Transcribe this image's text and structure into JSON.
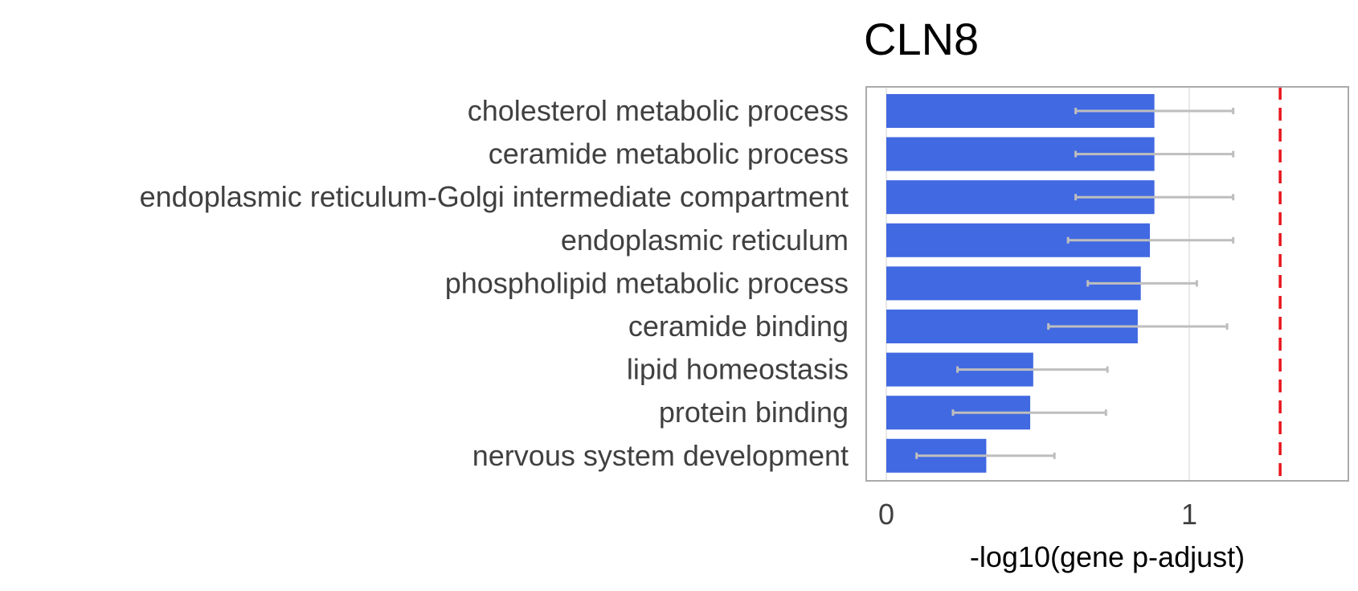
{
  "chart_data": {
    "type": "bar",
    "orientation": "horizontal",
    "title": "CLN8",
    "xlabel": "-log10(gene p-adjust)",
    "ylabel": "",
    "xlim": [
      -0.07,
      1.52
    ],
    "xticks": [
      0,
      1
    ],
    "xtick_labels": [
      "0",
      "1"
    ],
    "categories": [
      "cholesterol metabolic process",
      "ceramide metabolic process",
      "endoplasmic reticulum-Golgi intermediate compartment",
      "endoplasmic reticulum",
      "phospholipid metabolic process",
      "ceramide binding",
      "lipid homeostasis",
      "protein binding",
      "nervous system development"
    ],
    "values": [
      0.885,
      0.885,
      0.885,
      0.87,
      0.84,
      0.83,
      0.485,
      0.475,
      0.33
    ],
    "error_low": [
      0.625,
      0.625,
      0.625,
      0.6,
      0.665,
      0.535,
      0.235,
      0.22,
      0.1
    ],
    "error_high": [
      1.145,
      1.145,
      1.145,
      1.145,
      1.025,
      1.125,
      0.73,
      0.725,
      0.555
    ],
    "threshold": 1.3,
    "grid": "vertical at ticks",
    "legend": "none",
    "colors": {
      "bar": "#4169E1",
      "errorbar": "#BEBEBE",
      "threshold": "#E8141C",
      "frame": "#AAAAAA",
      "grid": "#D8D8D8"
    }
  }
}
